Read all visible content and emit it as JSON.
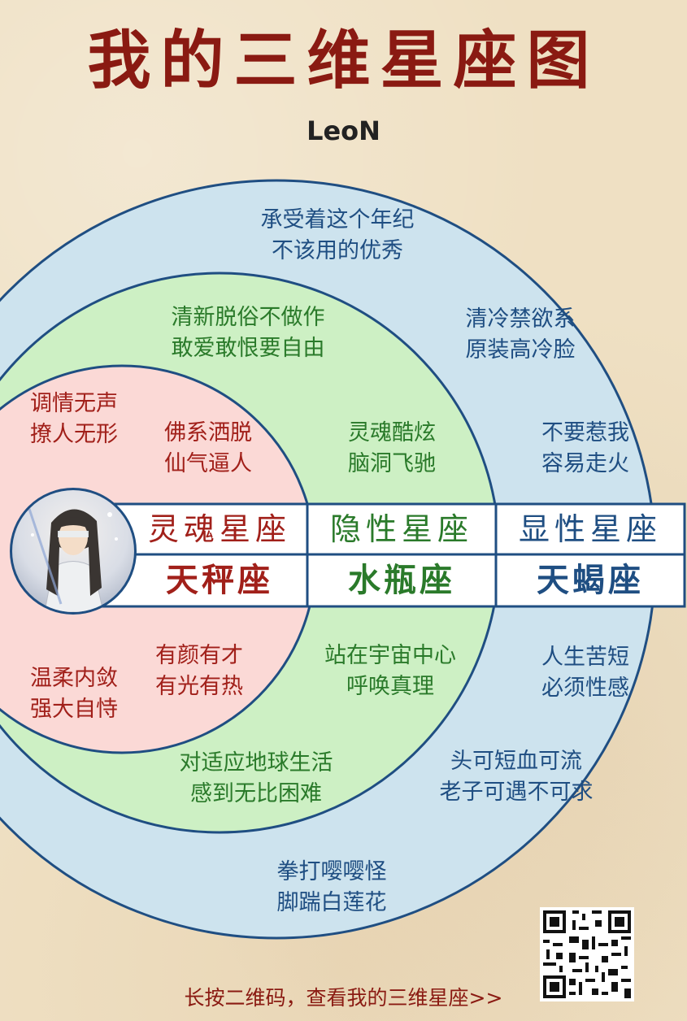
{
  "title": "我的三维星座图",
  "author": "LeoN",
  "colors": {
    "soul": "#a1201a",
    "hidden": "#2a7a2a",
    "visible": "#1f4e82",
    "outer_ring": "#cde3ee",
    "middle_ring": "#cdf0c4",
    "inner_ring": "#fbd9d6"
  },
  "outer_ring": {
    "top": [
      "承受着这个年纪",
      "不该用的优秀"
    ],
    "top_right": [
      "清冷禁欲系",
      "原装高冷脸"
    ],
    "right_upper": [
      "不要惹我",
      "容易走火"
    ],
    "right_lower": [
      "人生苦短",
      "必须性感"
    ],
    "bottom_right": [
      "头可短血可流",
      "老子可遇不可求"
    ],
    "bottom": [
      "拳打嘤嘤怪",
      "脚踹白莲花"
    ]
  },
  "middle_ring": {
    "top": [
      "清新脱俗不做作",
      "敢爱敢恨要自由"
    ],
    "right_upper": [
      "灵魂酷炫",
      "脑洞飞驰"
    ],
    "right_lower": [
      "站在宇宙中心",
      "呼唤真理"
    ],
    "bottom": [
      "对适应地球生活",
      "感到无比困难"
    ]
  },
  "inner_ring": {
    "top_left": [
      "调情无声",
      "撩人无形"
    ],
    "top_right": [
      "佛系洒脱",
      "仙气逼人"
    ],
    "bottom_right": [
      "有颜有才",
      "有光有热"
    ],
    "bottom_left": [
      "温柔内敛",
      "强大自恃"
    ]
  },
  "band": {
    "soul": {
      "label": "灵魂星座",
      "sign": "天秤座"
    },
    "hidden": {
      "label": "隐性星座",
      "sign": "水瓶座"
    },
    "visible": {
      "label": "显性星座",
      "sign": "天蝎座"
    }
  },
  "footer": "长按二维码，查看我的三维星座>>"
}
